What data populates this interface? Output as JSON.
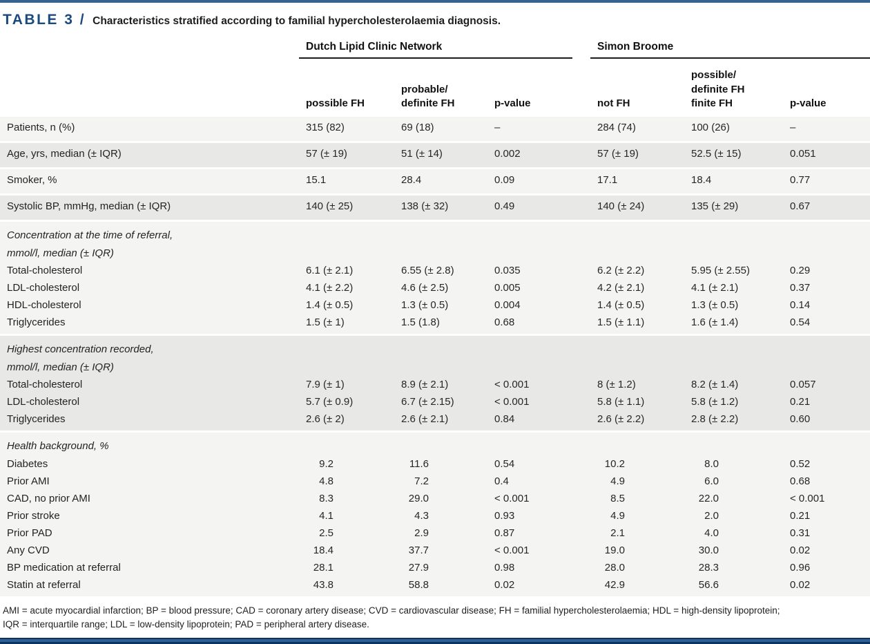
{
  "title": {
    "label": "TABLE 3 /",
    "caption": "Characteristics stratified according to familial hypercholesterolaemia diagnosis."
  },
  "table": {
    "groups": [
      {
        "label": "Dutch Lipid Clinic Network"
      },
      {
        "label": "Simon Broome"
      }
    ],
    "columns": [
      {
        "name": "col-possible-fh",
        "label": "possible FH"
      },
      {
        "name": "col-probable-definite-fh",
        "label": "probable/\ndefinite FH"
      },
      {
        "name": "col-p-value-dlcn",
        "label": "p-value"
      },
      {
        "name": "col-not-fh",
        "label": "not FH"
      },
      {
        "name": "col-possible-definite-fh-sb",
        "label": "possible/\ndefinite FH\nfinite FH"
      },
      {
        "name": "col-p-value-sb",
        "label": "p-value"
      }
    ],
    "sections": [
      {
        "header": null,
        "rows": [
          {
            "label": "Patients, n (%)",
            "values": [
              "315 (82)",
              "69 (18)",
              "–",
              "284 (74)",
              "100 (26)",
              "–"
            ]
          },
          {
            "label": "Age, yrs, median (± IQR)",
            "values": [
              "57 (± 19)",
              "51 (± 14)",
              "0.002",
              "57 (± 19)",
              "52.5 (± 15)",
              "0.051"
            ]
          },
          {
            "label": "Smoker, %",
            "values": [
              "15.1",
              "28.4",
              "0.09",
              "17.1",
              "18.4",
              "0.77"
            ]
          },
          {
            "label": "Systolic BP, mmHg, median (± IQR)",
            "values": [
              "140 (± 25)",
              "138 (± 32)",
              "0.49",
              "140 (± 24)",
              "135 (± 29)",
              "0.67"
            ]
          }
        ]
      },
      {
        "header": "Concentration at the time of referral,\nmmol/l, median (± IQR)",
        "rows": [
          {
            "label": "Total-cholesterol",
            "values": [
              "6.1 (± 2.1)",
              "6.55 (± 2.8)",
              "0.035",
              "6.2 (± 2.2)",
              "5.95 (± 2.55)",
              "0.29"
            ]
          },
          {
            "label": "LDL-cholesterol",
            "values": [
              "4.1 (± 2.2)",
              "4.6 (± 2.5)",
              "0.005",
              "4.2 (± 2.1)",
              "4.1 (± 2.1)",
              "0.37"
            ]
          },
          {
            "label": "HDL-cholesterol",
            "values": [
              "1.4 (± 0.5)",
              "1.3 (± 0.5)",
              "0.004",
              "1.4 (± 0.5)",
              "1.3 (± 0.5)",
              "0.14"
            ]
          },
          {
            "label": "Triglycerides",
            "values": [
              "1.5 (± 1)",
              "1.5 (1.8)",
              "0.68",
              "1.5 (± 1.1)",
              "1.6 (± 1.4)",
              "0.54"
            ]
          }
        ]
      },
      {
        "header": "Highest concentration recorded,\nmmol/l, median (± IQR)",
        "rows": [
          {
            "label": "Total-cholesterol",
            "values": [
              "7.9 (± 1)",
              "8.9 (± 2.1)",
              "< 0.001",
              "8 (± 1.2)",
              "8.2 (± 1.4)",
              "0.057"
            ]
          },
          {
            "label": "LDL-cholesterol",
            "values": [
              "5.7 (± 0.9)",
              "6.7 (± 2.15)",
              "< 0.001",
              "5.8 (± 1.1)",
              "5.8 (± 1.2)",
              "0.21"
            ]
          },
          {
            "label": "Triglycerides",
            "values": [
              "2.6 (± 2)",
              "2.6 (± 2.1)",
              "0.84",
              "2.6 (± 2.2)",
              "2.8 (± 2.2)",
              "0.60"
            ]
          }
        ]
      },
      {
        "header": "Health background, %",
        "numeric_align": true,
        "rows": [
          {
            "label": "Diabetes",
            "values": [
              "9.2",
              "11.6",
              "0.54",
              "10.2",
              "8.0",
              "0.52"
            ]
          },
          {
            "label": "Prior AMI",
            "values": [
              "4.8",
              "7.2",
              "0.4",
              "4.9",
              "6.0",
              "0.68"
            ]
          },
          {
            "label": "CAD, no prior AMI",
            "values": [
              "8.3",
              "29.0",
              "< 0.001",
              "8.5",
              "22.0",
              "< 0.001"
            ]
          },
          {
            "label": "Prior stroke",
            "values": [
              "4.1",
              "4.3",
              "0.93",
              "4.9",
              "2.0",
              "0.21"
            ]
          },
          {
            "label": "Prior PAD",
            "values": [
              "2.5",
              "2.9",
              "0.87",
              "2.1",
              "4.0",
              "0.31"
            ]
          },
          {
            "label": "Any CVD",
            "values": [
              "18.4",
              "37.7",
              "< 0.001",
              "19.0",
              "30.0",
              "0.02"
            ]
          },
          {
            "label": "BP medication at referral",
            "values": [
              "28.1",
              "27.9",
              "0.98",
              "28.0",
              "28.3",
              "0.96"
            ]
          },
          {
            "label": "Statin at referral",
            "values": [
              "43.8",
              "58.8",
              "0.02",
              "42.9",
              "56.6",
              "0.02"
            ]
          }
        ]
      }
    ]
  },
  "footnote": "AMI = acute myocardial infarction; BP = blood pressure; CAD = coronary artery disease; CVD = cardiovascular disease; FH = familial hypercholesterolaemia; HDL = high-density lipoprotein;\nIQR = interquartile range; LDL = low-density lipoprotein; PAD = peripheral artery disease.",
  "colors": {
    "accent_navy": "#1c4a7e",
    "top_rule": "#36648f",
    "bottom_rule": "#0f3360",
    "stripe_light": "#f4f4f2",
    "stripe_dark": "#e8e8e6"
  }
}
